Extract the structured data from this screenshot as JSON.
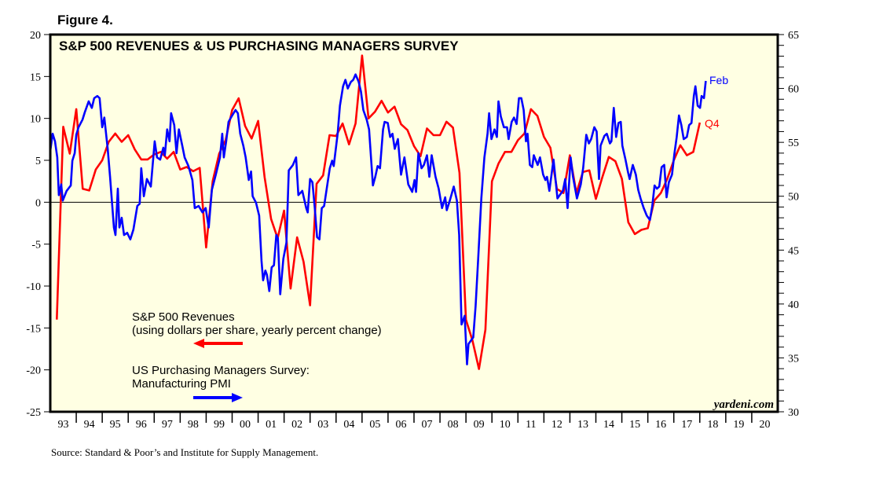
{
  "figure_label": "Figure 4.",
  "source": "Source: Standard & Poor’s and Institute for Supply Management.",
  "watermark": "yardeni.com",
  "chart_data": {
    "type": "line",
    "title": "S&P 500 REVENUES & US PURCHASING MANAGERS SURVEY",
    "grid": false,
    "x_tick_labels": [
      "93",
      "94",
      "95",
      "96",
      "97",
      "98",
      "99",
      "00",
      "01",
      "02",
      "03",
      "04",
      "05",
      "06",
      "07",
      "08",
      "09",
      "10",
      "11",
      "12",
      "13",
      "14",
      "15",
      "16",
      "17",
      "18",
      "19",
      "20"
    ],
    "xlim": [
      1993,
      2021
    ],
    "left_axis": {
      "ylim": [
        -25,
        20
      ],
      "ticks": [
        -25,
        -20,
        -15,
        -10,
        -5,
        0,
        5,
        10,
        15,
        20
      ]
    },
    "right_axis": {
      "ylim": [
        30,
        65
      ],
      "ticks": [
        30,
        35,
        40,
        45,
        50,
        55,
        60,
        65
      ]
    },
    "zero_line": 0,
    "legend": [
      {
        "lines": [
          "S&P 500 Revenues",
          "(using dollars per share, yearly percent change)"
        ],
        "color": "#ff0000",
        "axis_arrow": "left"
      },
      {
        "lines": [
          "US Purchasing Managers Survey:",
          "Manufacturing PMI"
        ],
        "color": "#0000ff",
        "axis_arrow": "right"
      }
    ],
    "series": [
      {
        "name": "S&P 500 Revenues",
        "axis": "left",
        "color": "#ff0000",
        "end_label": "Q4",
        "x": [
          1993.25,
          1993.5,
          1993.75,
          1994,
          1994.25,
          1994.5,
          1994.75,
          1995,
          1995.25,
          1995.5,
          1995.75,
          1996,
          1996.25,
          1996.5,
          1996.75,
          1997,
          1997.25,
          1997.5,
          1997.75,
          1998,
          1998.25,
          1998.5,
          1998.75,
          1999,
          1999.25,
          1999.5,
          1999.75,
          2000,
          2000.25,
          2000.5,
          2000.75,
          2001,
          2001.25,
          2001.5,
          2001.75,
          2002,
          2002.25,
          2002.5,
          2002.75,
          2003,
          2003.25,
          2003.5,
          2003.75,
          2004,
          2004.25,
          2004.5,
          2004.75,
          2005,
          2005.25,
          2005.5,
          2005.75,
          2006,
          2006.25,
          2006.5,
          2006.75,
          2007,
          2007.25,
          2007.5,
          2007.75,
          2008,
          2008.25,
          2008.5,
          2008.75,
          2009,
          2009.25,
          2009.5,
          2009.75,
          2010,
          2010.25,
          2010.5,
          2010.75,
          2011,
          2011.25,
          2011.5,
          2011.75,
          2012,
          2012.25,
          2012.5,
          2012.75,
          2013,
          2013.25,
          2013.5,
          2013.75,
          2014,
          2014.25,
          2014.5,
          2014.75,
          2015,
          2015.25,
          2015.5,
          2015.75,
          2016,
          2016.25,
          2016.5,
          2016.75,
          2017,
          2017.25,
          2017.5,
          2017.75,
          2018
        ],
        "y": [
          -14,
          9.0,
          5.8,
          11.1,
          1.6,
          1.4,
          3.9,
          5.0,
          7.2,
          8.2,
          7.2,
          8.0,
          6.3,
          5.1,
          5.1,
          5.7,
          6.0,
          5.2,
          6.0,
          3.9,
          4.2,
          3.7,
          4.1,
          -5.4,
          2.5,
          5.8,
          7.4,
          11.0,
          12.4,
          9.1,
          7.6,
          9.7,
          3.0,
          -2.0,
          -4.3,
          -1.0,
          -10.3,
          -4.2,
          -7.1,
          -12.3,
          2.2,
          3.2,
          8.0,
          7.9,
          9.4,
          6.9,
          9.4,
          17.5,
          10.0,
          10.8,
          12.1,
          10.7,
          11.4,
          9.3,
          8.6,
          6.7,
          5.5,
          8.8,
          8.0,
          8.0,
          9.6,
          8.9,
          3.5,
          -14.0,
          -16.5,
          -19.9,
          -15.2,
          2.5,
          4.6,
          6.0,
          6.0,
          7.4,
          8.2,
          11.1,
          10.3,
          7.8,
          6.5,
          1.6,
          1.1,
          5.6,
          1.1,
          3.6,
          3.8,
          0.4,
          3.0,
          5.4,
          4.9,
          2.8,
          -2.4,
          -3.8,
          -3.3,
          -3.1,
          0.2,
          1.1,
          2.8,
          5.0,
          6.8,
          5.6,
          6.0,
          9.5
        ]
      },
      {
        "name": "US Purchasing Managers Survey: Manufacturing PMI",
        "axis": "right",
        "color": "#0000ff",
        "end_label": "Feb",
        "x": [
          1993.0,
          1993.09,
          1993.18,
          1993.27,
          1993.33,
          1993.42,
          1993.48,
          1993.63,
          1993.79,
          1993.85,
          1993.94,
          1994.0,
          1994.09,
          1994.24,
          1994.33,
          1994.48,
          1994.6,
          1994.69,
          1994.81,
          1994.9,
          1995.0,
          1995.08,
          1995.21,
          1995.3,
          1995.45,
          1995.51,
          1995.6,
          1995.66,
          1995.75,
          1995.84,
          1995.96,
          1996.08,
          1996.2,
          1996.35,
          1996.44,
          1996.5,
          1996.6,
          1996.72,
          1996.87,
          1997.02,
          1997.11,
          1997.23,
          1997.35,
          1997.41,
          1997.5,
          1997.59,
          1997.65,
          1997.77,
          1997.86,
          1997.95,
          1998.08,
          1998.17,
          1998.32,
          1998.47,
          1998.56,
          1998.71,
          1998.86,
          1998.98,
          1999.1,
          1999.22,
          1999.37,
          1999.53,
          1999.62,
          1999.68,
          1999.77,
          1999.86,
          1999.98,
          2000.13,
          2000.22,
          2000.31,
          2000.43,
          2000.52,
          2000.64,
          2000.73,
          2000.79,
          2000.92,
          2001.04,
          2001.13,
          2001.19,
          2001.28,
          2001.34,
          2001.43,
          2001.52,
          2001.61,
          2001.7,
          2001.76,
          2001.85,
          2001.97,
          2002.09,
          2002.18,
          2002.34,
          2002.46,
          2002.55,
          2002.7,
          2002.85,
          2002.91,
          2003.0,
          2003.09,
          2003.18,
          2003.27,
          2003.36,
          2003.45,
          2003.54,
          2003.76,
          2003.85,
          2003.91,
          2004.06,
          2004.15,
          2004.27,
          2004.36,
          2004.45,
          2004.57,
          2004.66,
          2004.75,
          2004.87,
          2004.96,
          2005.05,
          2005.18,
          2005.27,
          2005.42,
          2005.51,
          2005.6,
          2005.69,
          2005.81,
          2005.87,
          2005.99,
          2006.08,
          2006.17,
          2006.26,
          2006.38,
          2006.5,
          2006.63,
          2006.78,
          2006.93,
          2007.02,
          2007.08,
          2007.17,
          2007.29,
          2007.38,
          2007.5,
          2007.59,
          2007.68,
          2007.83,
          2007.95,
          2008.08,
          2008.2,
          2008.26,
          2008.38,
          2008.53,
          2008.65,
          2008.74,
          2008.83,
          2008.95,
          2009.04,
          2009.1,
          2009.28,
          2009.37,
          2009.47,
          2009.59,
          2009.71,
          2009.83,
          2009.89,
          2009.98,
          2010.1,
          2010.19,
          2010.25,
          2010.34,
          2010.46,
          2010.58,
          2010.64,
          2010.76,
          2010.85,
          2010.95,
          2011.04,
          2011.13,
          2011.22,
          2011.31,
          2011.37,
          2011.46,
          2011.55,
          2011.61,
          2011.76,
          2011.85,
          2011.97,
          2012.06,
          2012.12,
          2012.21,
          2012.37,
          2012.52,
          2012.61,
          2012.73,
          2012.82,
          2012.91,
          2013.03,
          2013.12,
          2013.27,
          2013.42,
          2013.51,
          2013.63,
          2013.73,
          2013.82,
          2013.94,
          2014.03,
          2014.12,
          2014.18,
          2014.33,
          2014.42,
          2014.54,
          2014.6,
          2014.69,
          2014.78,
          2014.87,
          2014.96,
          2015.02,
          2015.14,
          2015.24,
          2015.3,
          2015.42,
          2015.54,
          2015.63,
          2015.72,
          2015.84,
          2015.96,
          2016.08,
          2016.17,
          2016.26,
          2016.35,
          2016.44,
          2016.53,
          2016.63,
          2016.72,
          2016.81,
          2016.93,
          2017.02,
          2017.11,
          2017.2,
          2017.29,
          2017.38,
          2017.5,
          2017.59,
          2017.68,
          2017.77,
          2017.83,
          2017.92,
          2018.01,
          2018.07,
          2018.16,
          2018.23
        ],
        "y": [
          54.2,
          55.8,
          55.1,
          53.6,
          50.1,
          51.1,
          49.6,
          50.5,
          51.0,
          53.3,
          54.0,
          55.7,
          56.4,
          57.1,
          57.8,
          58.8,
          58.2,
          59.1,
          59.3,
          59.1,
          56.4,
          57.3,
          54.4,
          51.8,
          47.1,
          46.4,
          50.7,
          47.1,
          48.0,
          46.4,
          46.6,
          46.0,
          46.9,
          49.1,
          49.3,
          52.6,
          50.0,
          51.6,
          50.9,
          55.1,
          53.6,
          53.4,
          54.5,
          53.8,
          56.2,
          55.1,
          57.7,
          56.6,
          54.0,
          56.2,
          54.7,
          53.6,
          52.8,
          51.5,
          48.9,
          49.1,
          48.5,
          48.9,
          47.1,
          50.6,
          52.0,
          53.6,
          55.8,
          53.6,
          55.1,
          56.9,
          57.4,
          58.0,
          57.7,
          55.8,
          54.7,
          53.6,
          51.5,
          52.3,
          50.0,
          49.4,
          48.2,
          44.0,
          42.2,
          43.1,
          42.7,
          41.2,
          43.4,
          43.6,
          46.4,
          46.1,
          40.9,
          44.2,
          45.7,
          52.4,
          52.9,
          53.6,
          50.1,
          50.5,
          48.9,
          48.5,
          51.6,
          51.3,
          48.9,
          46.2,
          46.0,
          48.9,
          49.1,
          52.6,
          53.3,
          52.8,
          55.8,
          58.4,
          60.2,
          60.8,
          60.0,
          60.6,
          60.8,
          61.3,
          60.6,
          59.7,
          58.0,
          57.1,
          56.2,
          51.0,
          51.8,
          52.8,
          52.6,
          56.2,
          56.9,
          56.8,
          55.5,
          55.8,
          54.4,
          55.3,
          52.0,
          53.6,
          51.1,
          50.4,
          51.5,
          50.4,
          54.0,
          52.6,
          52.9,
          53.8,
          51.8,
          53.8,
          51.8,
          50.7,
          48.9,
          49.9,
          48.7,
          49.6,
          50.9,
          49.6,
          46.4,
          38.1,
          38.9,
          34.4,
          36.3,
          36.9,
          39.8,
          44.2,
          49.8,
          53.6,
          55.8,
          57.7,
          55.3,
          56.2,
          55.5,
          58.8,
          57.4,
          56.4,
          56.4,
          55.3,
          56.9,
          57.3,
          56.7,
          59.1,
          59.1,
          58.0,
          55.1,
          55.8,
          52.9,
          52.7,
          53.8,
          52.9,
          53.6,
          52.0,
          51.5,
          51.8,
          50.5,
          53.4,
          49.8,
          50.1,
          50.5,
          51.6,
          48.9,
          53.6,
          51.8,
          49.8,
          51.1,
          52.6,
          55.7,
          54.9,
          55.3,
          56.4,
          56.0,
          51.6,
          54.7,
          55.6,
          55.8,
          54.9,
          55.1,
          58.2,
          55.5,
          56.8,
          56.9,
          54.7,
          53.4,
          52.2,
          51.6,
          52.9,
          52.0,
          50.6,
          49.8,
          48.9,
          48.2,
          47.8,
          49.1,
          51.0,
          50.7,
          50.9,
          52.7,
          52.9,
          49.9,
          51.3,
          52.0,
          53.9,
          55.5,
          57.5,
          56.6,
          55.3,
          55.5,
          56.6,
          56.8,
          59.3,
          60.2,
          58.4,
          58.2,
          59.3,
          59.1,
          60.7
        ]
      }
    ]
  }
}
